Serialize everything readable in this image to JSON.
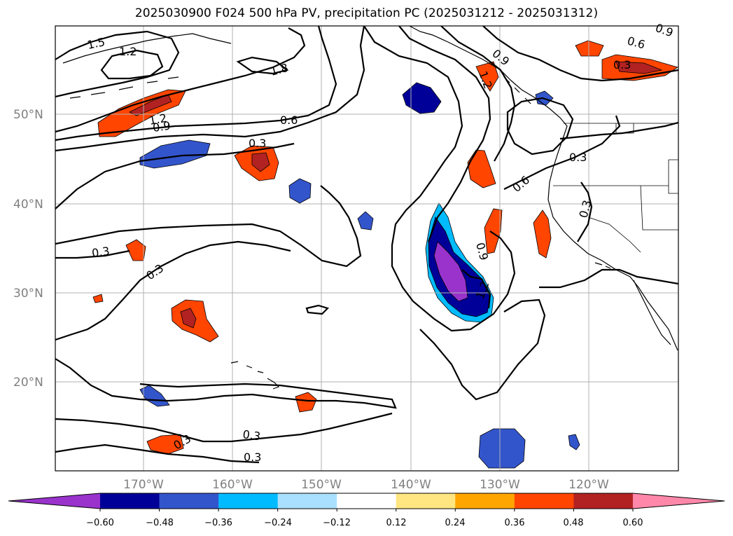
{
  "title": "2025030900 F024 500 hPa PV, precipitation PC (2025031212 - 2025031312)",
  "lat_labels": [
    "50°N",
    "40°N",
    "30°N",
    "20°N"
  ],
  "lon_labels": [
    "170°W",
    "160°W",
    "150°W",
    "140°W",
    "130°W",
    "120°W"
  ],
  "contour_labels": [
    "1.5",
    "1.2",
    "1.8",
    "1.2",
    "0.9",
    "0.6",
    "0.3",
    "0.3",
    "0.3",
    "0.9",
    "1.2",
    "0.6",
    "0.3",
    "0.9",
    "0.6",
    "0.3",
    "0.9",
    "1.2",
    "0.3",
    "0.3",
    "0.3"
  ],
  "colorbar": {
    "tick_labels": [
      "−0.60",
      "−0.48",
      "−0.36",
      "−0.24",
      "−0.12",
      "0.12",
      "0.24",
      "0.36",
      "0.48",
      "0.60"
    ],
    "colors": [
      "#9933cc",
      "#000099",
      "#3355cc",
      "#00bbff",
      "#aae0ff",
      "#ffffff",
      "#ffe680",
      "#ffa500",
      "#ff4500",
      "#b22222",
      "#ff88aa"
    ]
  },
  "map_extent": {
    "lon": [
      -180,
      -110
    ],
    "lat": [
      10,
      60
    ]
  }
}
